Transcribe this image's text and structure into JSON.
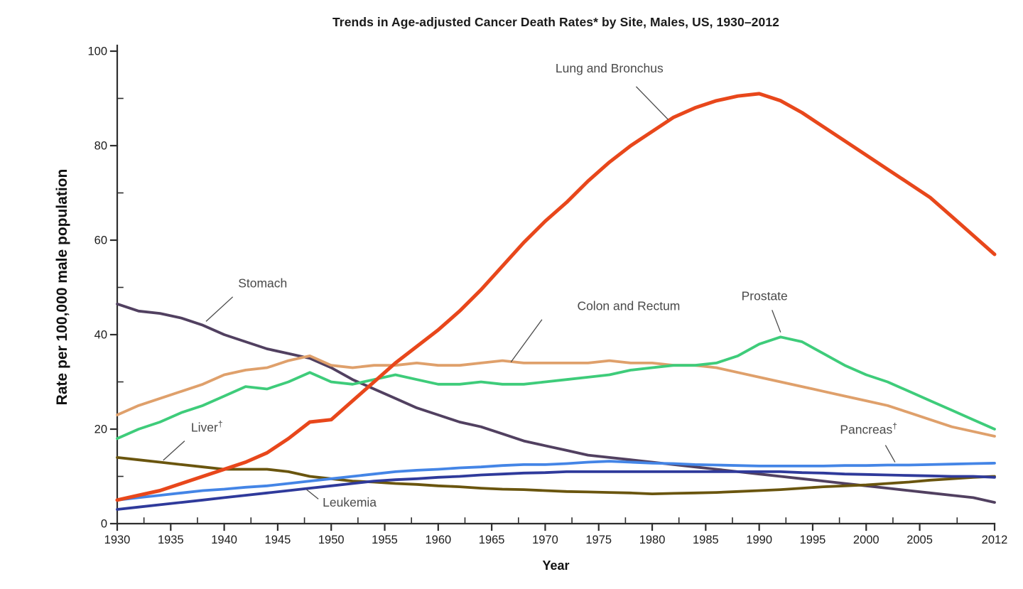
{
  "chart_data": {
    "type": "line",
    "title": "Trends in Age-adjusted Cancer Death Rates* by Site, Males, US, 1930–2012",
    "xlabel": "Year",
    "ylabel": "Rate per 100,000 male population",
    "xlim": [
      1930,
      2012
    ],
    "ylim": [
      0,
      100
    ],
    "grid": false,
    "legend": "inline-annotations",
    "x_major_ticks": [
      1930,
      1935,
      1940,
      1945,
      1950,
      1955,
      1960,
      1965,
      1970,
      1975,
      1980,
      1985,
      1990,
      1995,
      2000,
      2005,
      2012
    ],
    "x_minor_ticks": [
      1932.5,
      1937.5,
      1942.5,
      1947.5,
      1952.5,
      1957.5,
      1962.5,
      1967.5,
      1972.5,
      1977.5,
      1982.5,
      1987.5,
      1992.5,
      1997.5,
      2002.5,
      2008.5
    ],
    "y_major_ticks": [
      0,
      20,
      40,
      60,
      80,
      100
    ],
    "y_minor_ticks": [
      10,
      30,
      50,
      70,
      90
    ],
    "x": [
      1930,
      1932,
      1934,
      1936,
      1938,
      1940,
      1942,
      1944,
      1946,
      1948,
      1950,
      1952,
      1954,
      1956,
      1958,
      1960,
      1962,
      1964,
      1966,
      1968,
      1970,
      1972,
      1974,
      1976,
      1978,
      1980,
      1982,
      1984,
      1986,
      1988,
      1990,
      1992,
      1994,
      1996,
      1998,
      2000,
      2002,
      2004,
      2006,
      2008,
      2010,
      2012
    ],
    "series": [
      {
        "name": "Stomach",
        "color": "#514060",
        "values": [
          46.5,
          45,
          44.5,
          43.5,
          42,
          40,
          38.5,
          37,
          36,
          35,
          33,
          30.5,
          28.5,
          26.5,
          24.5,
          23,
          21.5,
          20.5,
          19,
          17.5,
          16.5,
          15.5,
          14.5,
          14,
          13.5,
          13,
          12.5,
          12,
          11.5,
          11,
          10.5,
          10,
          9.5,
          9,
          8.5,
          8,
          7.5,
          7,
          6.5,
          6,
          5.5,
          4.5
        ]
      },
      {
        "name": "Colon and Rectum",
        "color": "#DFA06B",
        "values": [
          23,
          25,
          26.5,
          28,
          29.5,
          31.5,
          32.5,
          33,
          34.5,
          35.5,
          33.5,
          33,
          33.5,
          33.5,
          34,
          33.5,
          33.5,
          34,
          34.5,
          34,
          34,
          34,
          34,
          34.5,
          34,
          34,
          33.5,
          33.5,
          33,
          32,
          31,
          30,
          29,
          28,
          27,
          26,
          25,
          23.5,
          22,
          20.5,
          19.5,
          18.5
        ]
      },
      {
        "name": "Prostate",
        "color": "#3ECC7A",
        "values": [
          18,
          20,
          21.5,
          23.5,
          25,
          27,
          29,
          28.5,
          30,
          32,
          30,
          29.5,
          30.5,
          31.5,
          30.5,
          29.5,
          29.5,
          30,
          29.5,
          29.5,
          30,
          30.5,
          31,
          31.5,
          32.5,
          33,
          33.5,
          33.5,
          34,
          35.5,
          38,
          39.5,
          38.5,
          36,
          33.5,
          31.5,
          30,
          28,
          26,
          24,
          22,
          20
        ]
      },
      {
        "name": "Liver",
        "color": "#6A550E",
        "values": [
          14,
          13.5,
          13,
          12.5,
          12,
          11.5,
          11.5,
          11.5,
          11,
          10,
          9.5,
          9,
          8.8,
          8.5,
          8.3,
          8,
          7.8,
          7.5,
          7.3,
          7.2,
          7,
          6.8,
          6.7,
          6.6,
          6.5,
          6.3,
          6.4,
          6.5,
          6.6,
          6.8,
          7,
          7.2,
          7.5,
          7.8,
          8,
          8.2,
          8.5,
          8.8,
          9.2,
          9.5,
          9.8,
          10
        ]
      },
      {
        "name": "Leukemia",
        "color": "#2F3A9B",
        "values": [
          3,
          3.5,
          4,
          4.5,
          5,
          5.5,
          6,
          6.5,
          7,
          7.5,
          8,
          8.5,
          9,
          9.3,
          9.5,
          9.8,
          10,
          10.3,
          10.5,
          10.7,
          10.8,
          11,
          11,
          11,
          11,
          11,
          11,
          11,
          11,
          11,
          11,
          11,
          10.8,
          10.7,
          10.5,
          10.4,
          10.3,
          10.2,
          10.1,
          10,
          10,
          9.8
        ]
      },
      {
        "name": "Pancreas",
        "color": "#4485E6",
        "values": [
          5,
          5.5,
          6,
          6.5,
          7,
          7.3,
          7.7,
          8,
          8.5,
          9,
          9.5,
          10,
          10.5,
          11,
          11.3,
          11.5,
          11.8,
          12,
          12.3,
          12.5,
          12.5,
          12.7,
          13,
          13.2,
          13,
          12.8,
          12.7,
          12.5,
          12.4,
          12.3,
          12.2,
          12.2,
          12.2,
          12.2,
          12.3,
          12.3,
          12.4,
          12.4,
          12.5,
          12.6,
          12.7,
          12.8
        ]
      },
      {
        "name": "Lung and Bronchus",
        "color": "#E8471B",
        "values": [
          5,
          6,
          7,
          8.5,
          10,
          11.5,
          13,
          15,
          18,
          21.5,
          22,
          26,
          30,
          34,
          37.5,
          41,
          45,
          49.5,
          54.5,
          59.5,
          64,
          68,
          72.5,
          76.5,
          80,
          83,
          86,
          88,
          89.5,
          90.5,
          91,
          89.5,
          87,
          84,
          81,
          78,
          75,
          72,
          69,
          65,
          61,
          57
        ]
      }
    ],
    "annotations": [
      {
        "label": "Lung and Bronchus",
        "text": {
          "year": 1976.0,
          "rate": 95.5,
          "anchor": "middle"
        },
        "leader": {
          "from": {
            "year": 1978.5,
            "rate": 92.5
          },
          "to": {
            "year": 1981.5,
            "rate": 85.5
          }
        }
      },
      {
        "label": "Stomach",
        "text": {
          "year": 1941.3,
          "rate": 50.0,
          "anchor": "start"
        },
        "leader": {
          "from": {
            "year": 1940.8,
            "rate": 48.0
          },
          "to": {
            "year": 1938.3,
            "rate": 42.8
          }
        }
      },
      {
        "label": "Colon and Rectum",
        "text": {
          "year": 1977.8,
          "rate": 45.2,
          "anchor": "middle"
        },
        "leader": {
          "from": {
            "year": 1969.7,
            "rate": 43.2
          },
          "to": {
            "year": 1966.8,
            "rate": 34.2
          }
        }
      },
      {
        "label": "Prostate",
        "text": {
          "year": 1990.5,
          "rate": 47.3,
          "anchor": "middle"
        },
        "leader": {
          "from": {
            "year": 1991.2,
            "rate": 45.2
          },
          "to": {
            "year": 1992.0,
            "rate": 40.5
          }
        }
      },
      {
        "label": "Liver",
        "sup": "†",
        "text": {
          "year": 1936.9,
          "rate": 19.5,
          "anchor": "start"
        },
        "leader": {
          "from": {
            "year": 1936.3,
            "rate": 17.5
          },
          "to": {
            "year": 1934.3,
            "rate": 13.4
          }
        }
      },
      {
        "label": "Pancreas",
        "sup": "†",
        "text": {
          "year": 2002.9,
          "rate": 19.0,
          "anchor": "end"
        },
        "leader": {
          "from": {
            "year": 2001.8,
            "rate": 16.6
          },
          "to": {
            "year": 2002.7,
            "rate": 13.0
          }
        }
      },
      {
        "label": "Leukemia",
        "text": {
          "year": 1949.2,
          "rate": 3.6,
          "anchor": "start"
        },
        "leader": {
          "from": {
            "year": 1948.8,
            "rate": 5.2
          },
          "to": {
            "year": 1947.7,
            "rate": 7.2
          }
        }
      }
    ]
  }
}
